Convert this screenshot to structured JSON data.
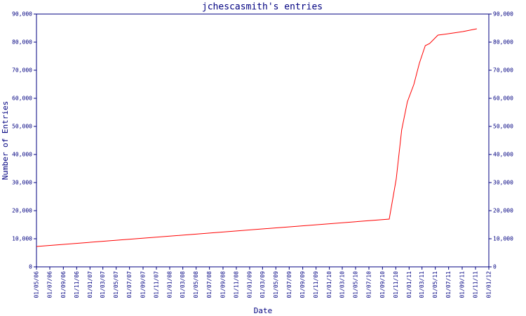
{
  "chart_data": {
    "type": "line",
    "title": "jchescasmith's entries",
    "xlabel": "Date",
    "ylabel": "Number of Entries",
    "x": [
      "2006-05-01",
      "2010-10-02",
      "2010-11-03",
      "2010-11-28",
      "2010-12-24",
      "2011-01-23",
      "2011-02-17",
      "2011-03-16",
      "2011-04-05",
      "2011-05-13",
      "2011-06-30",
      "2011-09-04",
      "2011-11-07"
    ],
    "series": [
      {
        "name": "entries",
        "color": "#ff0000",
        "values": [
          7250,
          17000,
          31250,
          48750,
          58750,
          65000,
          72500,
          78750,
          79500,
          82500,
          83000,
          83750,
          84750
        ]
      }
    ],
    "xlim": [
      "2006-05-01",
      "2012-01-01"
    ],
    "xticks": [
      {
        "value": "2006-05-01",
        "label": "01/05/06"
      },
      {
        "value": "2006-07-01",
        "label": "01/07/06"
      },
      {
        "value": "2006-09-01",
        "label": "01/09/06"
      },
      {
        "value": "2006-11-01",
        "label": "01/11/06"
      },
      {
        "value": "2007-01-01",
        "label": "01/01/07"
      },
      {
        "value": "2007-03-01",
        "label": "01/03/07"
      },
      {
        "value": "2007-05-01",
        "label": "01/05/07"
      },
      {
        "value": "2007-07-01",
        "label": "01/07/07"
      },
      {
        "value": "2007-09-01",
        "label": "01/09/07"
      },
      {
        "value": "2007-11-01",
        "label": "01/11/07"
      },
      {
        "value": "2008-01-01",
        "label": "01/01/08"
      },
      {
        "value": "2008-03-01",
        "label": "01/03/08"
      },
      {
        "value": "2008-05-01",
        "label": "01/05/08"
      },
      {
        "value": "2008-07-01",
        "label": "01/07/08"
      },
      {
        "value": "2008-09-01",
        "label": "01/09/08"
      },
      {
        "value": "2008-11-01",
        "label": "01/11/08"
      },
      {
        "value": "2009-01-01",
        "label": "01/01/09"
      },
      {
        "value": "2009-03-01",
        "label": "01/03/09"
      },
      {
        "value": "2009-05-01",
        "label": "01/05/09"
      },
      {
        "value": "2009-07-01",
        "label": "01/07/09"
      },
      {
        "value": "2009-09-01",
        "label": "01/09/09"
      },
      {
        "value": "2009-11-01",
        "label": "01/11/09"
      },
      {
        "value": "2010-01-01",
        "label": "01/01/10"
      },
      {
        "value": "2010-03-01",
        "label": "01/03/10"
      },
      {
        "value": "2010-05-01",
        "label": "01/05/10"
      },
      {
        "value": "2010-07-01",
        "label": "01/07/10"
      },
      {
        "value": "2010-09-01",
        "label": "01/09/10"
      },
      {
        "value": "2010-11-01",
        "label": "01/11/10"
      },
      {
        "value": "2011-01-01",
        "label": "01/01/11"
      },
      {
        "value": "2011-03-01",
        "label": "01/03/11"
      },
      {
        "value": "2011-05-01",
        "label": "01/05/11"
      },
      {
        "value": "2011-07-01",
        "label": "01/07/11"
      },
      {
        "value": "2011-09-01",
        "label": "01/09/11"
      },
      {
        "value": "2011-11-01",
        "label": "01/11/11"
      },
      {
        "value": "2012-01-01",
        "label": "01/01/12"
      }
    ],
    "ylim": [
      0,
      90000
    ],
    "yticks": [
      0,
      {
        "value": 10000,
        "label": "10,000"
      },
      {
        "value": 20000,
        "label": "20,000"
      },
      {
        "value": 30000,
        "label": "30,000"
      },
      {
        "value": 40000,
        "label": "40,000"
      },
      {
        "value": 50000,
        "label": "50,000"
      },
      {
        "value": 60000,
        "label": "60,000"
      },
      {
        "value": 70000,
        "label": "70,000"
      },
      {
        "value": 80000,
        "label": "80,000"
      },
      {
        "value": 90000,
        "label": "90,000"
      }
    ],
    "axis_color": "#000080",
    "right_axis": true
  }
}
